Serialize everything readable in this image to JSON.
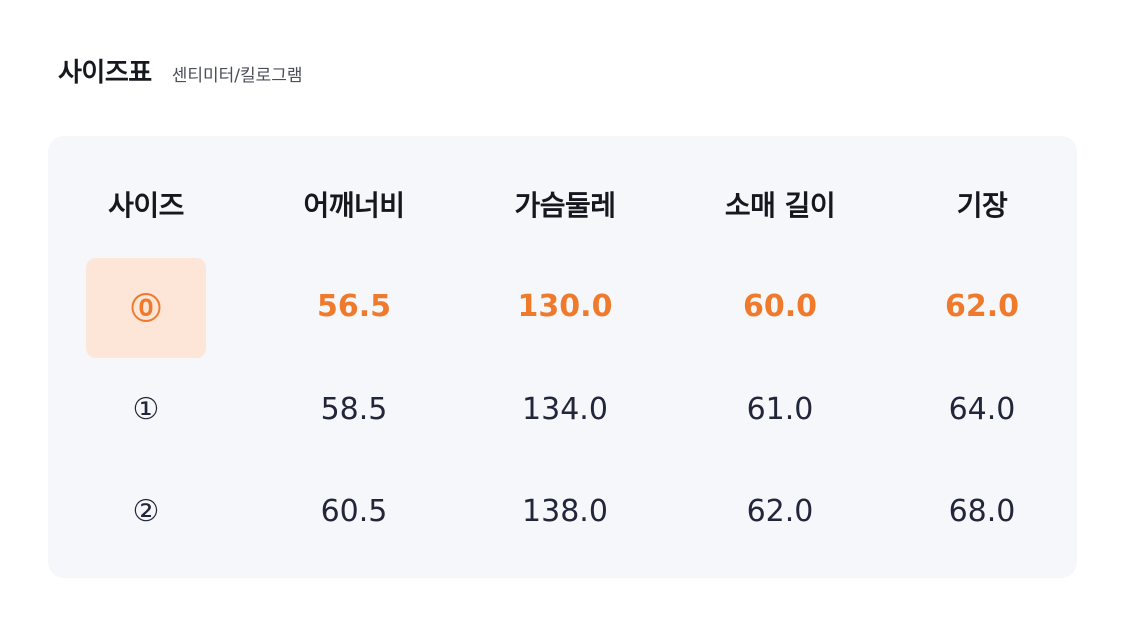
{
  "header": {
    "title": "사이즈표",
    "subtitle": "센티미터/킬로그램"
  },
  "table": {
    "columns": [
      "사이즈",
      "어깨너비",
      "가슴둘레",
      "소매 길이",
      "기장"
    ],
    "selected_index": 0,
    "rows": [
      {
        "size": "⓪",
        "shoulder": "56.5",
        "chest": "130.0",
        "sleeve": "60.0",
        "length": "62.0"
      },
      {
        "size": "①",
        "shoulder": "58.5",
        "chest": "134.0",
        "sleeve": "61.0",
        "length": "64.0"
      },
      {
        "size": "②",
        "shoulder": "60.5",
        "chest": "138.0",
        "sleeve": "62.0",
        "length": "68.0"
      }
    ]
  },
  "colors": {
    "accent": "#f07a2c",
    "selected_bg": "#fde6d7",
    "card_bg": "#f6f7fa"
  }
}
